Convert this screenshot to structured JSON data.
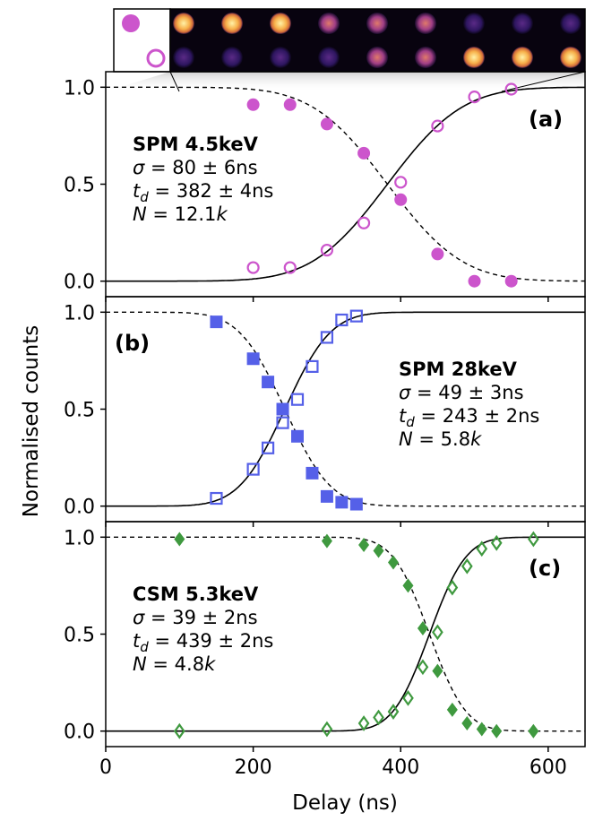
{
  "figure": {
    "xlabel": "Delay (ns)",
    "ylabel": "Normalised counts"
  },
  "colors": {
    "magenta": "#cc55cc",
    "blue": "#5560e8",
    "green": "#3f993f",
    "curve": "#000000"
  },
  "inset": {
    "description_icons": [
      "filled-circle-marker-icon",
      "open-circle-marker-icon"
    ],
    "spot_rows": 2,
    "spot_columns": 9
  },
  "chart_data": [
    {
      "type": "scatter",
      "panel_label": "(a)",
      "annotation": {
        "title": "SPM 4.5keV",
        "sigma": "σ = 80 ± 6ns",
        "td": "t_d = 382 ± 4ns",
        "n": "N = 12.1k",
        "sigma_sym": "σ",
        "sigma_val": " = 80 ± 6ns",
        "td_sym": "t",
        "td_sub": "d",
        "td_val": " = 382 ± 4ns",
        "n_sym": "N",
        "n_val": " = 12.1",
        "n_unit": "k"
      },
      "xlim": [
        0,
        650
      ],
      "ylim": [
        -0.08,
        1.08
      ],
      "yticks": [
        0.0,
        0.5,
        1.0
      ],
      "ytick_labels": [
        "0.0",
        "0.5",
        "1.0"
      ],
      "color": "#cc55cc",
      "series": [
        {
          "marker": "filled-circle",
          "x": [
            200,
            250,
            300,
            350,
            400,
            450,
            500,
            550
          ],
          "y": [
            0.91,
            0.91,
            0.81,
            0.66,
            0.42,
            0.14,
            0.0,
            0.0
          ]
        },
        {
          "marker": "open-circle",
          "x": [
            200,
            250,
            300,
            350,
            400,
            450,
            500,
            550
          ],
          "y": [
            0.07,
            0.07,
            0.16,
            0.3,
            0.51,
            0.8,
            0.95,
            0.99
          ]
        }
      ],
      "fit": {
        "center": 382,
        "width": 80
      }
    },
    {
      "type": "scatter",
      "panel_label": "(b)",
      "annotation": {
        "title": "SPM 28keV",
        "sigma": "σ = 49 ± 3ns",
        "td": "t_d = 243 ± 2ns",
        "n": "N = 5.8k",
        "sigma_sym": "σ",
        "sigma_val": " = 49 ± 3ns",
        "td_sym": "t",
        "td_sub": "d",
        "td_val": " = 243 ± 2ns",
        "n_sym": "N",
        "n_val": " = 5.8",
        "n_unit": "k"
      },
      "xlim": [
        0,
        650
      ],
      "ylim": [
        -0.08,
        1.08
      ],
      "yticks": [
        0.0,
        0.5,
        1.0
      ],
      "ytick_labels": [
        "0.0",
        "0.5",
        "1.0"
      ],
      "color": "#5560e8",
      "series": [
        {
          "marker": "filled-square",
          "x": [
            150,
            200,
            220,
            240,
            260,
            280,
            300,
            320,
            340
          ],
          "y": [
            0.95,
            0.76,
            0.64,
            0.5,
            0.36,
            0.17,
            0.05,
            0.02,
            0.01
          ]
        },
        {
          "marker": "open-square",
          "x": [
            150,
            200,
            220,
            240,
            260,
            280,
            300,
            320,
            340
          ],
          "y": [
            0.04,
            0.19,
            0.3,
            0.43,
            0.55,
            0.72,
            0.87,
            0.96,
            0.98
          ]
        }
      ],
      "fit": {
        "center": 243,
        "width": 49
      }
    },
    {
      "type": "scatter",
      "panel_label": "(c)",
      "annotation": {
        "title": "CSM 5.3keV",
        "sigma": "σ = 39 ± 2ns",
        "td": "t_d = 439 ± 2ns",
        "n": "N = 4.8k",
        "sigma_sym": "σ",
        "sigma_val": " = 39 ± 2ns",
        "td_sym": "t",
        "td_sub": "d",
        "td_val": " = 439 ± 2ns",
        "n_sym": "N",
        "n_val": " = 4.8",
        "n_unit": "k"
      },
      "xlim": [
        0,
        650
      ],
      "ylim": [
        -0.08,
        1.08
      ],
      "yticks": [
        0.0,
        0.5,
        1.0
      ],
      "ytick_labels": [
        "0.0",
        "0.5",
        "1.0"
      ],
      "xticks": [
        0,
        200,
        400,
        600
      ],
      "xtick_labels": [
        "0",
        "200",
        "400",
        "600"
      ],
      "color": "#3f993f",
      "series": [
        {
          "marker": "filled-diamond",
          "x": [
            100,
            300,
            350,
            370,
            390,
            410,
            430,
            450,
            470,
            490,
            510,
            530,
            580
          ],
          "y": [
            0.99,
            0.98,
            0.96,
            0.93,
            0.87,
            0.75,
            0.53,
            0.31,
            0.11,
            0.04,
            0.01,
            0.0,
            0.0
          ]
        },
        {
          "marker": "open-diamond",
          "x": [
            100,
            300,
            350,
            370,
            390,
            410,
            430,
            450,
            470,
            490,
            510,
            530,
            580
          ],
          "y": [
            0.0,
            0.01,
            0.04,
            0.07,
            0.1,
            0.17,
            0.33,
            0.51,
            0.74,
            0.85,
            0.94,
            0.97,
            0.99
          ]
        }
      ],
      "fit": {
        "center": 439,
        "width": 39
      }
    }
  ]
}
